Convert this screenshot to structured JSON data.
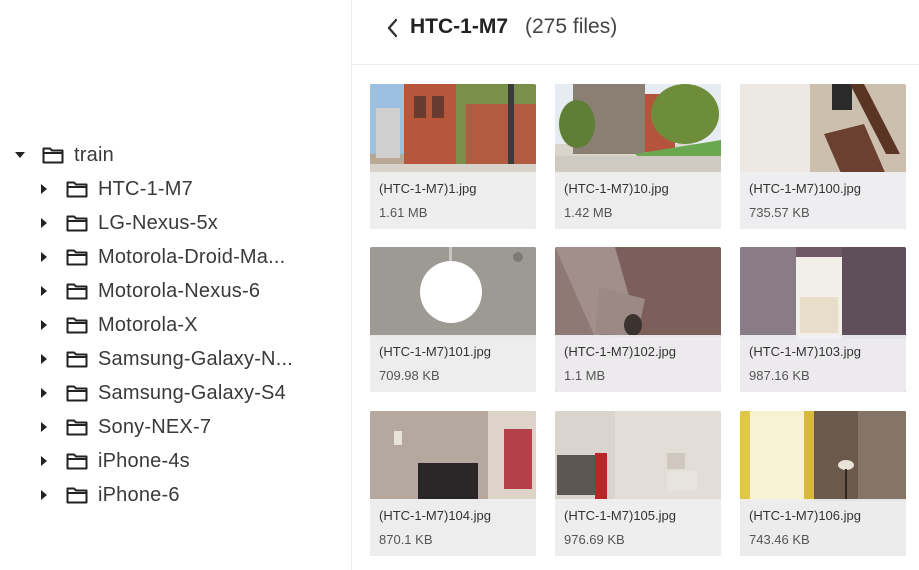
{
  "tree": {
    "root": {
      "label": "train",
      "expanded": true
    },
    "children": [
      {
        "label": "HTC-1-M7"
      },
      {
        "label": "LG-Nexus-5x"
      },
      {
        "label": "Motorola-Droid-Ma..."
      },
      {
        "label": "Motorola-Nexus-6"
      },
      {
        "label": "Motorola-X"
      },
      {
        "label": "Samsung-Galaxy-N..."
      },
      {
        "label": "Samsung-Galaxy-S4"
      },
      {
        "label": "Sony-NEX-7"
      },
      {
        "label": "iPhone-4s"
      },
      {
        "label": "iPhone-6"
      }
    ]
  },
  "header": {
    "title": "HTC-1-M7",
    "count": "(275 files)"
  },
  "files": [
    {
      "name": "(HTC-1-M7)1.jpg",
      "size": "1.61 MB"
    },
    {
      "name": "(HTC-1-M7)10.jpg",
      "size": "1.42 MB"
    },
    {
      "name": "(HTC-1-M7)100.jpg",
      "size": "735.57 KB"
    },
    {
      "name": "(HTC-1-M7)101.jpg",
      "size": "709.98 KB"
    },
    {
      "name": "(HTC-1-M7)102.jpg",
      "size": "1.1 MB"
    },
    {
      "name": "(HTC-1-M7)103.jpg",
      "size": "987.16 KB"
    },
    {
      "name": "(HTC-1-M7)104.jpg",
      "size": "870.1 KB"
    },
    {
      "name": "(HTC-1-M7)105.jpg",
      "size": "976.69 KB"
    },
    {
      "name": "(HTC-1-M7)106.jpg",
      "size": "743.46 KB"
    }
  ]
}
